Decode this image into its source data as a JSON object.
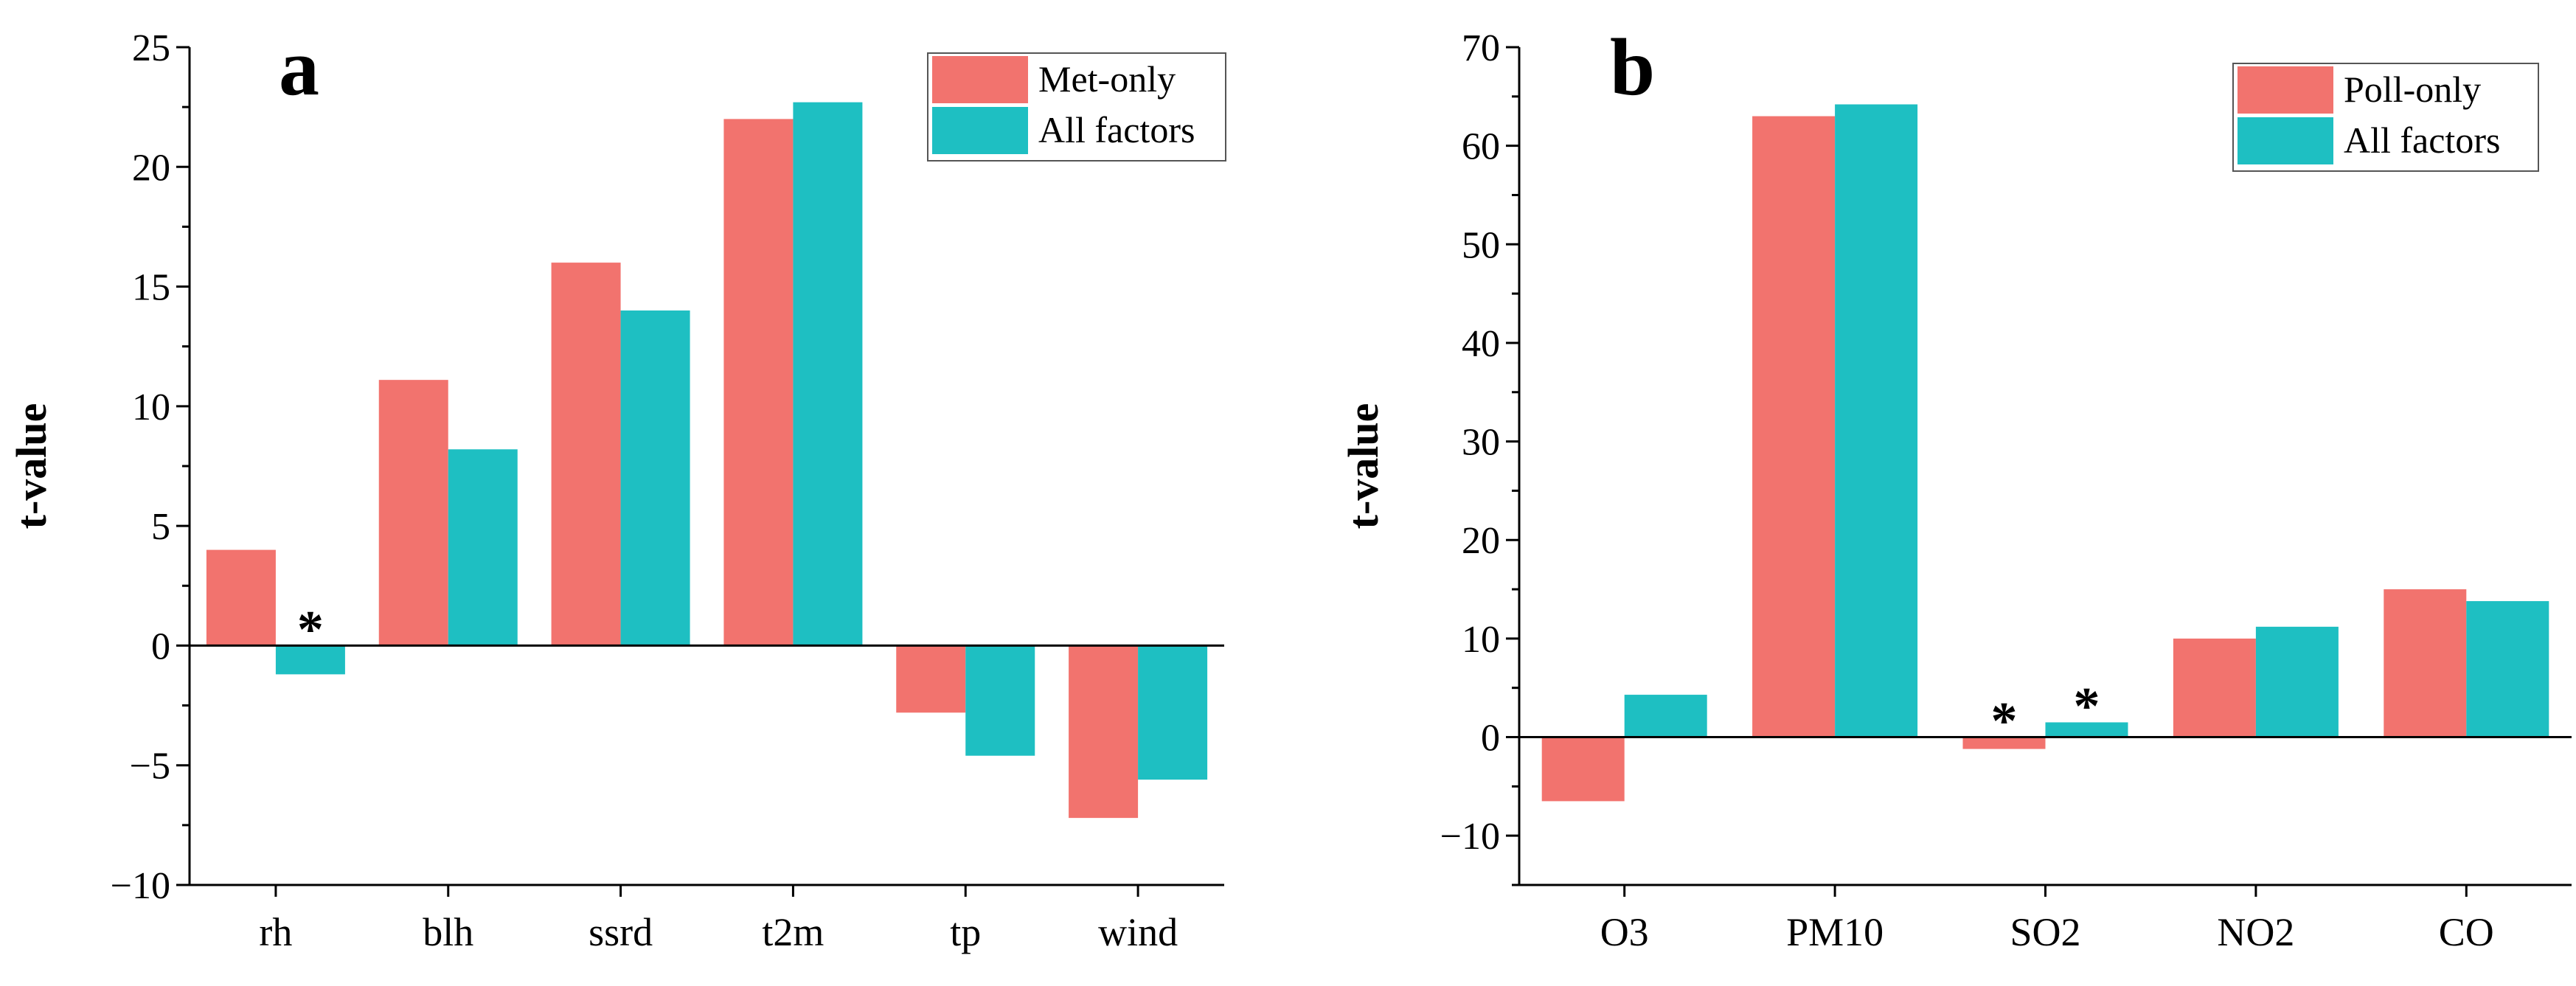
{
  "colors": {
    "series1": "#F2736E",
    "series2": "#1EBFC2",
    "axis": "#000000"
  },
  "chart_data": [
    {
      "panel": "a",
      "type": "bar",
      "ylabel": "t-value",
      "ylim": [
        -10,
        25
      ],
      "yticks": [
        -10,
        -5,
        0,
        5,
        10,
        15,
        20,
        25
      ],
      "ytick_labels": [
        "−10",
        "−5",
        "0",
        "5",
        "10",
        "15",
        "20",
        "25"
      ],
      "categories": [
        "rh",
        "blh",
        "ssrd",
        "t2m",
        "tp",
        "wind"
      ],
      "series": [
        {
          "name": "Met-only",
          "values": [
            4.0,
            11.1,
            16.0,
            22.0,
            -2.8,
            -7.2
          ]
        },
        {
          "name": "All factors",
          "values": [
            -1.2,
            8.2,
            14.0,
            22.7,
            -4.6,
            -5.6
          ]
        }
      ],
      "annotations": [
        {
          "text": "*",
          "category": "rh",
          "series": "All factors"
        }
      ],
      "legend": "top-right"
    },
    {
      "panel": "b",
      "type": "bar",
      "ylabel": "t-value",
      "ylim": [
        -15,
        70
      ],
      "yticks": [
        -10,
        0,
        10,
        20,
        30,
        40,
        50,
        60,
        70
      ],
      "ytick_labels": [
        "−10",
        "0",
        "10",
        "20",
        "30",
        "40",
        "50",
        "60",
        "70"
      ],
      "categories": [
        "O3",
        "PM10",
        "SO2",
        "NO2",
        "CO"
      ],
      "series": [
        {
          "name": "Poll-only",
          "values": [
            -6.5,
            63.0,
            -1.2,
            10.0,
            15.0
          ]
        },
        {
          "name": "All factors",
          "values": [
            4.3,
            64.2,
            1.5,
            11.2,
            13.8
          ]
        }
      ],
      "annotations": [
        {
          "text": "*",
          "category": "SO2",
          "series": "Poll-only"
        },
        {
          "text": "*",
          "category": "SO2",
          "series": "All factors"
        }
      ],
      "legend": "top-right"
    }
  ]
}
